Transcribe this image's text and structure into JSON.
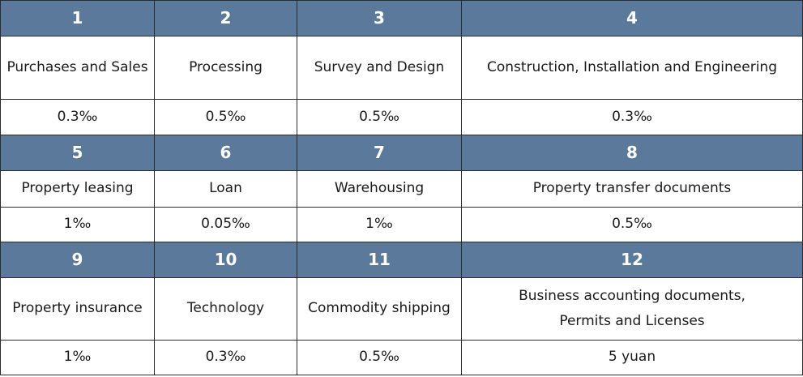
{
  "table": {
    "blocks": [
      {
        "numbers": [
          "1",
          "2",
          "3",
          "4"
        ],
        "categories": [
          "Purchases and Sales",
          "Processing",
          "Survey and Design",
          "Construction, Installation and Engineering"
        ],
        "rates": [
          "0.3‰",
          "0.5‰",
          "0.5‰",
          "0.3‰"
        ]
      },
      {
        "numbers": [
          "5",
          "6",
          "7",
          "8"
        ],
        "categories": [
          "Property leasing",
          "Loan",
          "Warehousing",
          "Property transfer documents"
        ],
        "rates": [
          "1‰",
          "0.05‰",
          "1‰",
          "0.5‰"
        ]
      },
      {
        "numbers": [
          "9",
          "10",
          "11",
          "12"
        ],
        "categories": [
          "Property insurance",
          "Technology",
          "Commodity shipping",
          "Business accounting documents,"
        ],
        "category_line2": "Permits and Licenses",
        "rates": [
          "1‰",
          "0.3‰",
          "0.5‰",
          "5 yuan"
        ]
      }
    ]
  },
  "colors": {
    "header_bg": "#5b7a9b",
    "header_text": "#ffffff",
    "border": "#2b2b2b"
  }
}
